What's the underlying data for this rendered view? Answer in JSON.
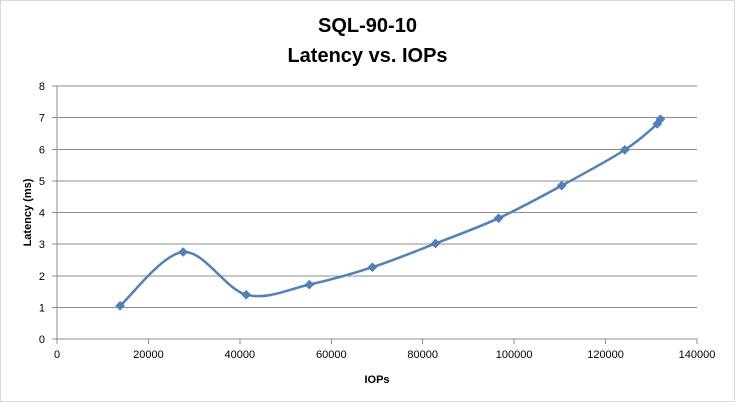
{
  "chart_data": {
    "type": "line",
    "title": "SQL-90-10",
    "subtitle": "Latency vs. IOPs",
    "xlabel": "IOPs",
    "ylabel": "Latency (ms)",
    "xlim": [
      0,
      140000
    ],
    "ylim": [
      0,
      8
    ],
    "x_ticks": [
      0,
      20000,
      40000,
      60000,
      80000,
      100000,
      120000,
      140000
    ],
    "y_ticks": [
      0,
      1,
      2,
      3,
      4,
      5,
      6,
      7,
      8
    ],
    "grid": "horizontal",
    "legend": "none",
    "smooth": true,
    "series": [
      {
        "color": "#4f81bd",
        "marker": "diamond",
        "points": [
          {
            "x": 13800,
            "y": 1.05
          },
          {
            "x": 27600,
            "y": 2.75
          },
          {
            "x": 41400,
            "y": 1.4
          },
          {
            "x": 55200,
            "y": 1.72
          },
          {
            "x": 69000,
            "y": 2.27
          },
          {
            "x": 82800,
            "y": 3.02
          },
          {
            "x": 96600,
            "y": 3.82
          },
          {
            "x": 110400,
            "y": 4.85
          },
          {
            "x": 124200,
            "y": 5.98
          },
          {
            "x": 131300,
            "y": 6.8
          },
          {
            "x": 132000,
            "y": 6.95
          }
        ]
      }
    ]
  }
}
